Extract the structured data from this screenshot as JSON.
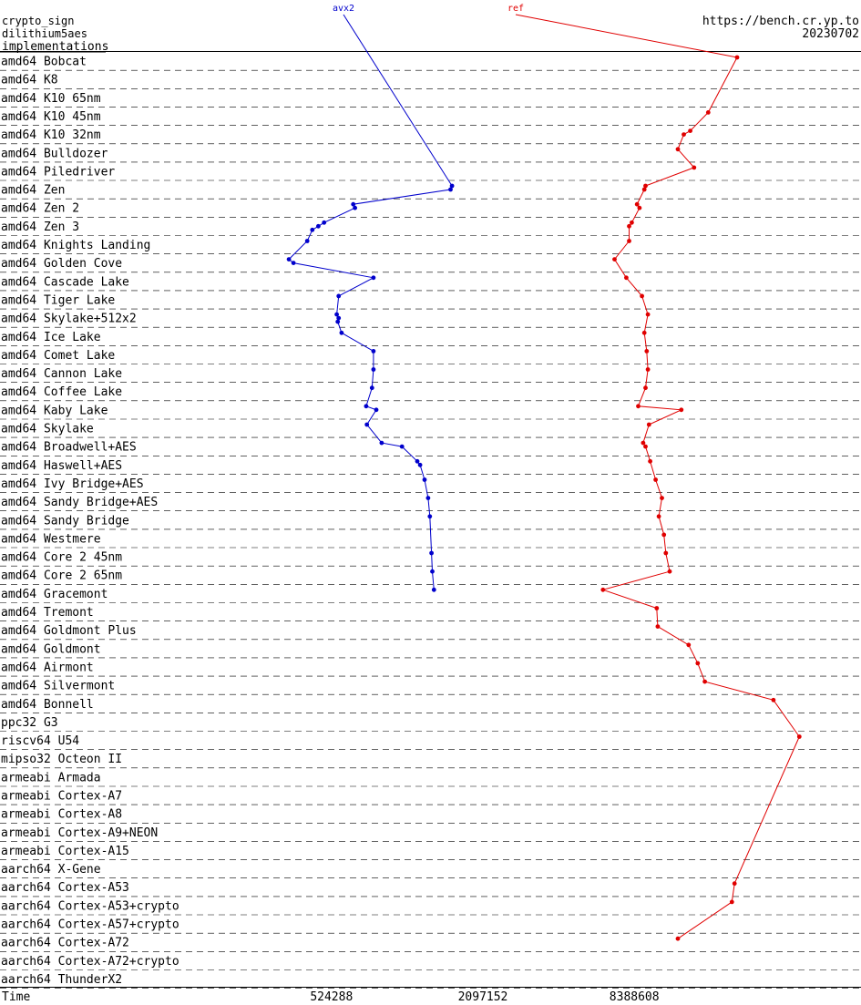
{
  "header": {
    "primitive": "crypto_sign",
    "scheme": "dilithium5aes",
    "section": "implementations",
    "site": "https://bench.cr.yp.to",
    "date": "20230702"
  },
  "colors": {
    "avx2": "#0000cc",
    "ref": "#e00000"
  },
  "chart_data": {
    "type": "line",
    "xlabel": "Time",
    "x_scale": "log",
    "x_ticks": [
      524288,
      2097152,
      8388608
    ],
    "x_tick_labels": [
      "524288",
      "2097152",
      "8388608"
    ],
    "xlim": [
      60000,
      60000000
    ],
    "categories": [
      "amd64 Bobcat",
      "amd64 K8",
      "amd64 K10 65nm",
      "amd64 K10 45nm",
      "amd64 K10 32nm",
      "amd64 Bulldozer",
      "amd64 Piledriver",
      "amd64 Zen",
      "amd64 Zen 2",
      "amd64 Zen 3",
      "amd64 Knights Landing",
      "amd64 Golden Cove",
      "amd64 Cascade Lake",
      "amd64 Tiger Lake",
      "amd64 Skylake+512x2",
      "amd64 Ice Lake",
      "amd64 Comet Lake",
      "amd64 Cannon Lake",
      "amd64 Coffee Lake",
      "amd64 Kaby Lake",
      "amd64 Skylake",
      "amd64 Broadwell+AES",
      "amd64 Haswell+AES",
      "amd64 Ivy Bridge+AES",
      "amd64 Sandy Bridge+AES",
      "amd64 Sandy Bridge",
      "amd64 Westmere",
      "amd64 Core 2 45nm",
      "amd64 Core 2 65nm",
      "amd64 Gracemont",
      "amd64 Tremont",
      "amd64 Goldmont Plus",
      "amd64 Goldmont",
      "amd64 Airmont",
      "amd64 Silvermont",
      "amd64 Bonnell",
      "ppc32 G3",
      "riscv64 U54",
      "mipso32 Octeon II",
      "armeabi Armada",
      "armeabi Cortex-A7",
      "armeabi Cortex-A8",
      "armeabi Cortex-A9+NEON",
      "armeabi Cortex-A15",
      "aarch64 X-Gene",
      "aarch64 Cortex-A53",
      "aarch64 Cortex-A53+crypto",
      "aarch64 Cortex-A57+crypto",
      "aarch64 Cortex-A72",
      "aarch64 Cortex-A72+crypto",
      "aarch64 ThunderX2"
    ],
    "series": [
      {
        "name": "avx2",
        "color": "#0000cc",
        "points": [
          {
            "row": "amd64 Zen",
            "x": 1580000
          },
          {
            "row": "amd64 Zen",
            "x": 1560000
          },
          {
            "row": "amd64 Zen 2",
            "x": 640000
          },
          {
            "row": "amd64 Zen 2",
            "x": 650000
          },
          {
            "row": "amd64 Zen 3",
            "x": 490000
          },
          {
            "row": "amd64 Zen 3",
            "x": 465000
          },
          {
            "row": "amd64 Zen 3",
            "x": 440000
          },
          {
            "row": "amd64 Knights Landing",
            "x": 420000
          },
          {
            "row": "amd64 Golden Cove",
            "x": 355000
          },
          {
            "row": "amd64 Golden Cove",
            "x": 370000
          },
          {
            "row": "amd64 Cascade Lake",
            "x": 770000
          },
          {
            "row": "amd64 Tiger Lake",
            "x": 560000
          },
          {
            "row": "amd64 Skylake+512x2",
            "x": 550000
          },
          {
            "row": "amd64 Skylake+512x2",
            "x": 560000
          },
          {
            "row": "amd64 Skylake+512x2",
            "x": 555000
          },
          {
            "row": "amd64 Ice Lake",
            "x": 575000
          },
          {
            "row": "amd64 Comet Lake",
            "x": 770000
          },
          {
            "row": "amd64 Cannon Lake",
            "x": 770000
          },
          {
            "row": "amd64 Coffee Lake",
            "x": 760000
          },
          {
            "row": "amd64 Kaby Lake",
            "x": 720000
          },
          {
            "row": "amd64 Kaby Lake",
            "x": 790000
          },
          {
            "row": "amd64 Skylake",
            "x": 725000
          },
          {
            "row": "amd64 Broadwell+AES",
            "x": 830000
          },
          {
            "row": "amd64 Broadwell+AES",
            "x": 1000000
          },
          {
            "row": "amd64 Haswell+AES",
            "x": 1150000
          },
          {
            "row": "amd64 Haswell+AES",
            "x": 1180000
          },
          {
            "row": "amd64 Ivy Bridge+AES",
            "x": 1230000
          },
          {
            "row": "amd64 Sandy Bridge+AES",
            "x": 1270000
          },
          {
            "row": "amd64 Sandy Bridge",
            "x": 1290000
          },
          {
            "row": "amd64 Core 2 45nm",
            "x": 1310000
          },
          {
            "row": "amd64 Core 2 65nm",
            "x": 1320000
          },
          {
            "row": "amd64 Gracemont",
            "x": 1340000
          }
        ]
      },
      {
        "name": "ref",
        "color": "#e00000",
        "points": [
          {
            "row": "amd64 Bobcat",
            "x": 21500000
          },
          {
            "row": "amd64 K10 45nm",
            "x": 16500000
          },
          {
            "row": "amd64 K10 32nm",
            "x": 14000000
          },
          {
            "row": "amd64 K10 32nm",
            "x": 13200000
          },
          {
            "row": "amd64 Bulldozer",
            "x": 12500000
          },
          {
            "row": "amd64 Piledriver",
            "x": 14500000
          },
          {
            "row": "amd64 Zen",
            "x": 9300000
          },
          {
            "row": "amd64 Zen",
            "x": 9200000
          },
          {
            "row": "amd64 Zen 2",
            "x": 8600000
          },
          {
            "row": "amd64 Zen 2",
            "x": 8800000
          },
          {
            "row": "amd64 Zen 3",
            "x": 8200000
          },
          {
            "row": "amd64 Zen 3",
            "x": 8000000
          },
          {
            "row": "amd64 Knights Landing",
            "x": 8000000
          },
          {
            "row": "amd64 Golden Cove",
            "x": 7000000
          },
          {
            "row": "amd64 Cascade Lake",
            "x": 7800000
          },
          {
            "row": "amd64 Tiger Lake",
            "x": 9000000
          },
          {
            "row": "amd64 Skylake+512x2",
            "x": 9500000
          },
          {
            "row": "amd64 Ice Lake",
            "x": 9200000
          },
          {
            "row": "amd64 Comet Lake",
            "x": 9400000
          },
          {
            "row": "amd64 Cannon Lake",
            "x": 9500000
          },
          {
            "row": "amd64 Coffee Lake",
            "x": 9300000
          },
          {
            "row": "amd64 Kaby Lake",
            "x": 8700000
          },
          {
            "row": "amd64 Kaby Lake",
            "x": 12900000
          },
          {
            "row": "amd64 Skylake",
            "x": 9600000
          },
          {
            "row": "amd64 Broadwell+AES",
            "x": 9100000
          },
          {
            "row": "amd64 Broadwell+AES",
            "x": 9300000
          },
          {
            "row": "amd64 Haswell+AES",
            "x": 9700000
          },
          {
            "row": "amd64 Ivy Bridge+AES",
            "x": 10200000
          },
          {
            "row": "amd64 Sandy Bridge+AES",
            "x": 10800000
          },
          {
            "row": "amd64 Sandy Bridge",
            "x": 10500000
          },
          {
            "row": "amd64 Westmere",
            "x": 11000000
          },
          {
            "row": "amd64 Core 2 45nm",
            "x": 11200000
          },
          {
            "row": "amd64 Core 2 65nm",
            "x": 11600000
          },
          {
            "row": "amd64 Gracemont",
            "x": 6300000
          },
          {
            "row": "amd64 Tremont",
            "x": 10300000
          },
          {
            "row": "amd64 Goldmont Plus",
            "x": 10400000
          },
          {
            "row": "amd64 Goldmont",
            "x": 13800000
          },
          {
            "row": "amd64 Airmont",
            "x": 15000000
          },
          {
            "row": "amd64 Silvermont",
            "x": 16000000
          },
          {
            "row": "amd64 Bonnell",
            "x": 30000000
          },
          {
            "row": "riscv64 U54",
            "x": 38000000
          },
          {
            "row": "aarch64 Cortex-A53",
            "x": 21000000
          },
          {
            "row": "aarch64 Cortex-A53+crypto",
            "x": 20500000
          },
          {
            "row": "aarch64 Cortex-A72",
            "x": 12500000
          }
        ]
      }
    ]
  }
}
